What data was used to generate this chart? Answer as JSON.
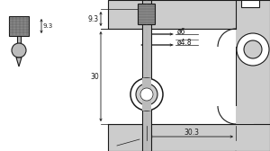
{
  "line_color": "#1a1a1a",
  "dim_color": "#1a1a1a",
  "body_fill": "#cccccc",
  "stem_fill": "#bbbbbb",
  "knurl_fill": "#888888",
  "white": "#ffffff",
  "dim_9_3_top": "9.3",
  "dim_9_3_left": "9.3",
  "dim_30": "30",
  "dim_30_3": "30.3",
  "dim_phi6": "ø6",
  "dim_phi4_8": "ø4.8",
  "fig_width": 3.0,
  "fig_height": 1.68,
  "dpi": 100
}
